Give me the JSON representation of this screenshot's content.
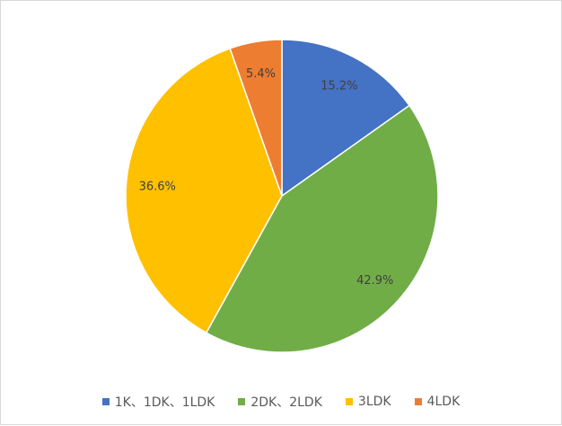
{
  "chart_data": {
    "type": "pie",
    "title": "",
    "categories": [
      "1K、1DK、1LDK",
      "2DK、2LDK",
      "3LDK",
      "4LDK"
    ],
    "values": [
      15.2,
      42.9,
      36.6,
      5.4
    ],
    "labels": [
      "15.2%",
      "42.9%",
      "36.6%",
      "5.4%"
    ],
    "colors": [
      "#4472C4",
      "#70AD47",
      "#FFC000",
      "#ED7D31"
    ],
    "start_angle": "top",
    "direction": "clockwise",
    "legend_placement": "bottom"
  }
}
